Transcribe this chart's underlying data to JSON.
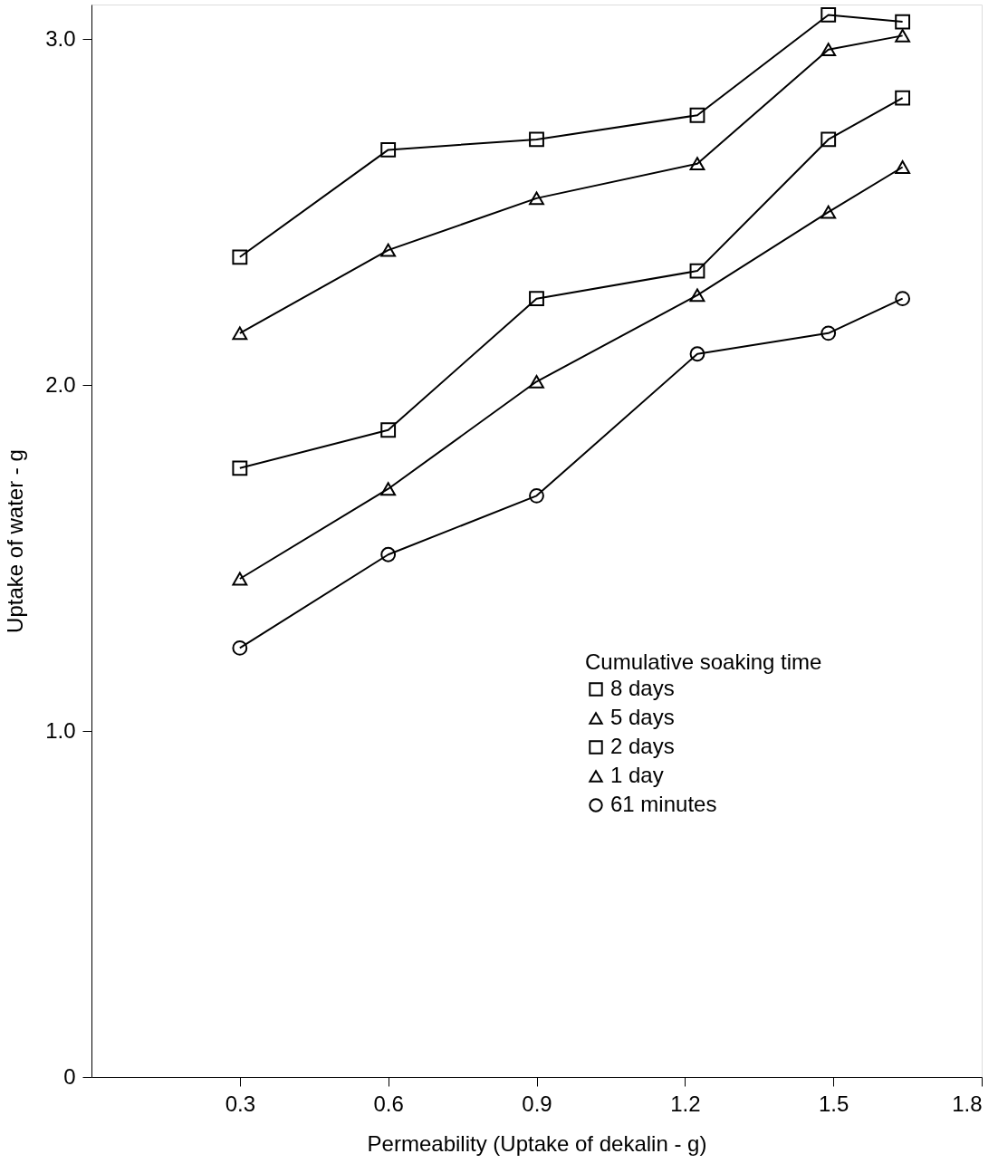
{
  "chart_data": {
    "type": "line",
    "xlabel": "Permeability    (Uptake    of    dekalin  -  g)",
    "ylabel": "Uptake    of    water  -  g",
    "legend_title": "Cumulative soaking time",
    "x": [
      0.3,
      0.6,
      0.9,
      1.225,
      1.49,
      1.64
    ],
    "series": [
      {
        "name": "8 days",
        "color": "#000000",
        "marker": "square",
        "values": [
          2.37,
          2.68,
          2.71,
          2.78,
          3.07,
          3.05
        ]
      },
      {
        "name": "5 days",
        "color": "#000000",
        "marker": "triangle",
        "values": [
          2.15,
          2.39,
          2.54,
          2.64,
          2.97,
          3.01
        ]
      },
      {
        "name": "2 days",
        "color": "#000000",
        "marker": "square",
        "values": [
          1.76,
          1.87,
          2.25,
          2.33,
          2.71,
          2.83
        ]
      },
      {
        "name": "1 day",
        "color": "#000000",
        "marker": "triangle",
        "values": [
          1.44,
          1.7,
          2.01,
          2.26,
          2.5,
          2.63
        ]
      },
      {
        "name": "61 minutes",
        "color": "#000000",
        "marker": "circle",
        "values": [
          1.24,
          1.51,
          1.68,
          2.09,
          2.15,
          2.25
        ]
      }
    ],
    "xlim": [
      0,
      1.8
    ],
    "xticks": [
      0.3,
      0.6,
      0.9,
      1.2,
      1.5,
      1.8
    ],
    "ylim": [
      0,
      3.1
    ],
    "yticks": [
      {
        "value": 0,
        "label": "0"
      },
      {
        "value": 1,
        "label": "1.0"
      },
      {
        "value": 2,
        "label": "2.0"
      },
      {
        "value": 3,
        "label": "3.0"
      }
    ],
    "grid": false,
    "legend": "bottom right",
    "line_style": "solid"
  }
}
